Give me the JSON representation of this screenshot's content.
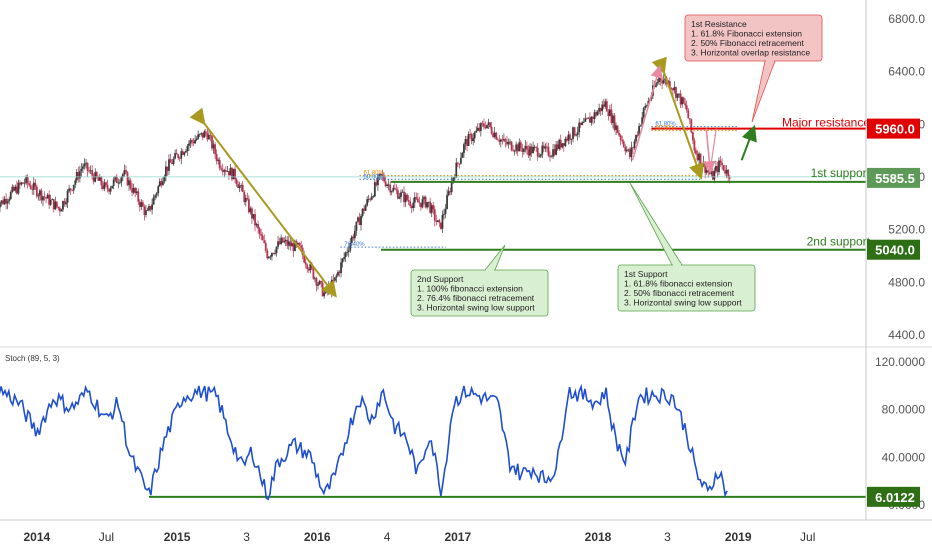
{
  "chart_data": [
    {
      "type": "candlestick",
      "panel": "price",
      "y_ticks": [
        "6800.0",
        "6400.0",
        "6000.0",
        "5600.0",
        "5200.0",
        "4800.0",
        "4400.0"
      ],
      "y_tick_values": [
        6800,
        6400,
        6000,
        5600,
        5200,
        4800,
        4400
      ],
      "ylim": [
        4320,
        6960
      ],
      "grid": false,
      "price_path": [
        [
          "2013-10-01",
          5400
        ],
        [
          "2013-12-01",
          5560
        ],
        [
          "2014-03-01",
          5350
        ],
        [
          "2014-05-01",
          5680
        ],
        [
          "2014-07-01",
          5500
        ],
        [
          "2014-08-15",
          5620
        ],
        [
          "2014-10-15",
          5300
        ],
        [
          "2014-12-01",
          5650
        ],
        [
          "2015-02-01",
          5850
        ],
        [
          "2015-03-20",
          5930
        ],
        [
          "2015-04-20",
          5700
        ],
        [
          "2015-06-01",
          5600
        ],
        [
          "2015-07-15",
          5300
        ],
        [
          "2015-08-25",
          5000
        ],
        [
          "2015-10-01",
          5100
        ],
        [
          "2015-11-15",
          5050
        ],
        [
          "2016-01-20",
          4700
        ],
        [
          "2016-02-15",
          4800
        ],
        [
          "2016-03-20",
          5050
        ],
        [
          "2016-05-01",
          5350
        ],
        [
          "2016-06-15",
          5600
        ],
        [
          "2016-07-15",
          5500
        ],
        [
          "2016-09-01",
          5400
        ],
        [
          "2016-10-15",
          5400
        ],
        [
          "2016-11-15",
          5200
        ],
        [
          "2016-12-20",
          5600
        ],
        [
          "2017-01-20",
          5850
        ],
        [
          "2017-03-15",
          6000
        ],
        [
          "2017-05-01",
          5850
        ],
        [
          "2017-07-01",
          5800
        ],
        [
          "2017-09-01",
          5780
        ],
        [
          "2017-10-15",
          5900
        ],
        [
          "2017-12-01",
          6000
        ],
        [
          "2018-01-20",
          6150
        ],
        [
          "2018-02-20",
          5950
        ],
        [
          "2018-03-25",
          5750
        ],
        [
          "2018-05-01",
          6100
        ],
        [
          "2018-06-10",
          6350
        ],
        [
          "2018-07-10",
          6300
        ],
        [
          "2018-08-20",
          6100
        ],
        [
          "2018-09-10",
          5800
        ],
        [
          "2018-10-10",
          5650
        ],
        [
          "2018-10-25",
          5590
        ],
        [
          "2018-11-15",
          5700
        ],
        [
          "2018-12-05",
          5620
        ]
      ],
      "levels": [
        {
          "name": "Major resistance",
          "value": 5960.0,
          "label": "5960.0",
          "color": "#e00000"
        },
        {
          "name": "1st support",
          "value": 5585.5,
          "label": "5585.5",
          "color": "#2e7d1e"
        },
        {
          "name": "2nd support",
          "value": 5040.0,
          "label": "5040.0",
          "color": "#2e7d1e"
        }
      ],
      "fib_labels": {
        "resistance_upper": "61.80%",
        "resistance_lower": "50.00%",
        "support1_upper": "61.80%",
        "support1_lower": "50.00%",
        "support2": "76.40%"
      },
      "annotations": [
        {
          "id": "first-resistance",
          "lines": [
            "1st Resistance",
            "1. 61.8% Fibonacci extension",
            "2. 50% Fibonacci retracement",
            "3. Horizontal overlap resistance"
          ],
          "fill": "#f3c4c4",
          "stroke": "#e05050"
        },
        {
          "id": "second-support",
          "lines": [
            "2nd Support",
            "1. 100% fibonacci extension",
            "2. 76.4% fibonacci retracement",
            "3. Horizontal swing low support"
          ],
          "fill": "#d9efd2",
          "stroke": "#5aa24a"
        },
        {
          "id": "first-support",
          "lines": [
            "1st Support",
            "1. 61.8% fibonacci extension",
            "2. 50% fibonacci retracement",
            "3. Horizontal swing low support"
          ],
          "fill": "#d9efd2",
          "stroke": "#5aa24a"
        }
      ],
      "colors": {
        "up": "#3a3a3a",
        "down": "#b83250",
        "olive_arrow": "#a89a1e",
        "pink_arrow": "#e88aa0",
        "green_arrow": "#2e7d1e"
      }
    },
    {
      "type": "line",
      "panel": "oscillator",
      "indicator_label": "Stoch (89, 5, 3)",
      "y_ticks": [
        "120.0000",
        "80.0000",
        "40.0000",
        "0.0000"
      ],
      "y_tick_values": [
        120,
        80,
        40,
        0
      ],
      "ylim": [
        -5,
        125
      ],
      "series": [
        {
          "color": "#1f4fd0",
          "path": [
            [
              "2013-10-01",
              95
            ],
            [
              "2013-11-15",
              85
            ],
            [
              "2014-01-01",
              60
            ],
            [
              "2014-02-15",
              90
            ],
            [
              "2014-04-01",
              80
            ],
            [
              "2014-05-15",
              95
            ],
            [
              "2014-07-01",
              70
            ],
            [
              "2014-08-01",
              85
            ],
            [
              "2014-09-01",
              40
            ],
            [
              "2014-10-20",
              7
            ],
            [
              "2014-12-01",
              55
            ],
            [
              "2015-01-15",
              90
            ],
            [
              "2015-03-01",
              95
            ],
            [
              "2015-04-15",
              90
            ],
            [
              "2015-05-15",
              60
            ],
            [
              "2015-06-20",
              30
            ],
            [
              "2015-07-15",
              45
            ],
            [
              "2015-08-25",
              6
            ],
            [
              "2015-09-20",
              35
            ],
            [
              "2015-11-01",
              50
            ],
            [
              "2015-12-15",
              40
            ],
            [
              "2016-01-20",
              7
            ],
            [
              "2016-02-20",
              25
            ],
            [
              "2016-03-20",
              60
            ],
            [
              "2016-04-20",
              90
            ],
            [
              "2016-05-20",
              70
            ],
            [
              "2016-06-20",
              95
            ],
            [
              "2016-07-20",
              65
            ],
            [
              "2016-08-20",
              55
            ],
            [
              "2016-09-20",
              25
            ],
            [
              "2016-10-20",
              60
            ],
            [
              "2016-11-20",
              10
            ],
            [
              "2016-12-20",
              85
            ],
            [
              "2017-01-20",
              95
            ],
            [
              "2017-03-01",
              90
            ],
            [
              "2017-04-15",
              85
            ],
            [
              "2017-05-15",
              35
            ],
            [
              "2017-06-15",
              25
            ],
            [
              "2017-07-15",
              30
            ],
            [
              "2017-08-15",
              20
            ],
            [
              "2017-09-15",
              30
            ],
            [
              "2017-10-15",
              95
            ],
            [
              "2017-12-01",
              90
            ],
            [
              "2018-01-01",
              85
            ],
            [
              "2018-01-20",
              95
            ],
            [
              "2018-02-15",
              55
            ],
            [
              "2018-03-15",
              35
            ],
            [
              "2018-04-15",
              90
            ],
            [
              "2018-06-01",
              92
            ],
            [
              "2018-07-15",
              90
            ],
            [
              "2018-08-20",
              60
            ],
            [
              "2018-09-15",
              25
            ],
            [
              "2018-10-15",
              8
            ],
            [
              "2018-11-10",
              30
            ],
            [
              "2018-12-05",
              6
            ]
          ]
        }
      ],
      "level": {
        "value": 6.0122,
        "label": "6.0122",
        "color": "#2e7d1e"
      }
    }
  ],
  "x_axis": {
    "ticks": [
      {
        "label": "2014",
        "date": "2014-01-01",
        "bold": true
      },
      {
        "label": "Jul",
        "date": "2014-07-01",
        "bold": false
      },
      {
        "label": "2015",
        "date": "2015-01-01",
        "bold": true
      },
      {
        "label": "3",
        "date": "2015-07-01",
        "bold": false
      },
      {
        "label": "2016",
        "date": "2016-01-01",
        "bold": true
      },
      {
        "label": "4",
        "date": "2016-07-01",
        "bold": false
      },
      {
        "label": "2017",
        "date": "2017-01-01",
        "bold": true
      },
      {
        "label": "2018",
        "date": "2018-01-01",
        "bold": true
      },
      {
        "label": "3",
        "date": "2018-07-01",
        "bold": false
      },
      {
        "label": "2019",
        "date": "2019-01-01",
        "bold": true
      },
      {
        "label": "Jul",
        "date": "2019-07-01",
        "bold": false
      }
    ]
  }
}
